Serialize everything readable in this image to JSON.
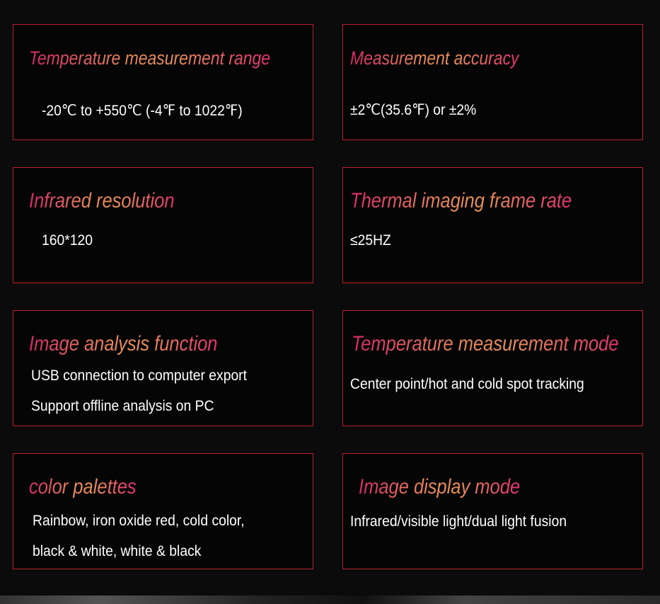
{
  "specs": [
    {
      "title": "Temperature measurement range",
      "lines": [
        "-20℃ to +550℃ (-4℉ to 1022℉)"
      ]
    },
    {
      "title": "Measurement accuracy",
      "lines": [
        "±2℃(35.6℉) or ±2%"
      ]
    },
    {
      "title": "Infrared resolution",
      "lines": [
        "160*120"
      ]
    },
    {
      "title": "Thermal imaging frame rate",
      "lines": [
        "≤25HZ"
      ]
    },
    {
      "title": "Image analysis function",
      "lines": [
        "USB connection to computer export",
        "Support offline analysis on PC"
      ]
    },
    {
      "title": "Temperature measurement mode",
      "lines": [
        "Center point/hot and cold spot tracking"
      ]
    },
    {
      "title": "color palettes",
      "lines": [
        "Rainbow, iron oxide red, cold color,",
        "black & white, white & black"
      ]
    },
    {
      "title": "Image display mode",
      "lines": [
        "Infrared/visible light/dual light fusion"
      ]
    }
  ],
  "colors": {
    "border": "#b8212b",
    "title_gradient": [
      "#d8286a",
      "#e8905a",
      "#e43070"
    ],
    "background": "#0b0b0b"
  }
}
